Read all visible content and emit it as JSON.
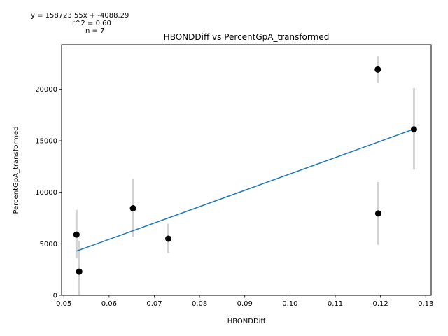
{
  "chart_data": {
    "type": "scatter",
    "title": "HBONDDiff vs PercentGpA_transformed",
    "xlabel": "HBONDDiff",
    "ylabel": "PercentGpA_transformed",
    "xlim": [
      0.0495,
      0.1312
    ],
    "ylim": [
      0,
      24300
    ],
    "xticks": [
      0.05,
      0.06,
      0.07,
      0.08,
      0.09,
      0.1,
      0.11,
      0.12,
      0.13
    ],
    "xtick_labels": [
      "0.05",
      "0.06",
      "0.07",
      "0.08",
      "0.09",
      "0.10",
      "0.11",
      "0.12",
      "0.13"
    ],
    "yticks": [
      0,
      5000,
      10000,
      15000,
      20000
    ],
    "ytick_labels": [
      "0",
      "5000",
      "10000",
      "15000",
      "20000"
    ],
    "grid": false,
    "annotations": [
      "y = 158723.55x + -4088.29",
      "r^2 = 0.60",
      "n = 7"
    ],
    "fit_line": {
      "slope": 158723.55,
      "intercept": -4088.29,
      "x_range": [
        0.0528,
        0.1274
      ]
    },
    "points": [
      {
        "x": 0.0528,
        "y": 5900,
        "err_low": 3600,
        "err_high": 8300
      },
      {
        "x": 0.0534,
        "y": 2300,
        "err_low": 0,
        "err_high": 5300
      },
      {
        "x": 0.0653,
        "y": 8450,
        "err_low": 5700,
        "err_high": 11300
      },
      {
        "x": 0.0731,
        "y": 5500,
        "err_low": 4100,
        "err_high": 6950
      },
      {
        "x": 0.1194,
        "y": 21900,
        "err_low": 20600,
        "err_high": 23200
      },
      {
        "x": 0.1195,
        "y": 7950,
        "err_low": 4900,
        "err_high": 11000
      },
      {
        "x": 0.1274,
        "y": 16100,
        "err_low": 12200,
        "err_high": 20100
      }
    ],
    "colors": {
      "point": "#000000",
      "errorbar": "#d3d3d3",
      "fit": "#1f77b4",
      "axis": "#000000"
    }
  }
}
